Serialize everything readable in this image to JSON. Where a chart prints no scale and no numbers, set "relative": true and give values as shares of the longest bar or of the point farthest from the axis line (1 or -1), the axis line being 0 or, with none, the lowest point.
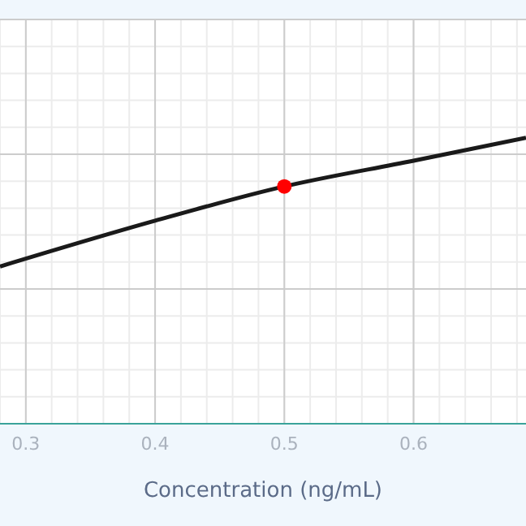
{
  "chart_data": {
    "type": "line",
    "xlabel": "Concentration (ng/mL)",
    "relative": true,
    "x": [
      0.28,
      0.4,
      0.5,
      0.6,
      0.687
    ],
    "xlim": [
      0.28,
      0.687
    ],
    "xticks": [
      0.3,
      0.4,
      0.5,
      0.6
    ],
    "grid": true,
    "series": [
      {
        "color": "#1a1a1a",
        "values": [
          0.55,
          0.71,
          0.83,
          0.92,
          1
        ],
        "marker": "none"
      },
      {
        "type": "scatter",
        "color": "#ff0000",
        "x": [
          0.5
        ],
        "values": [
          0.83
        ],
        "marker": "circle"
      }
    ]
  }
}
